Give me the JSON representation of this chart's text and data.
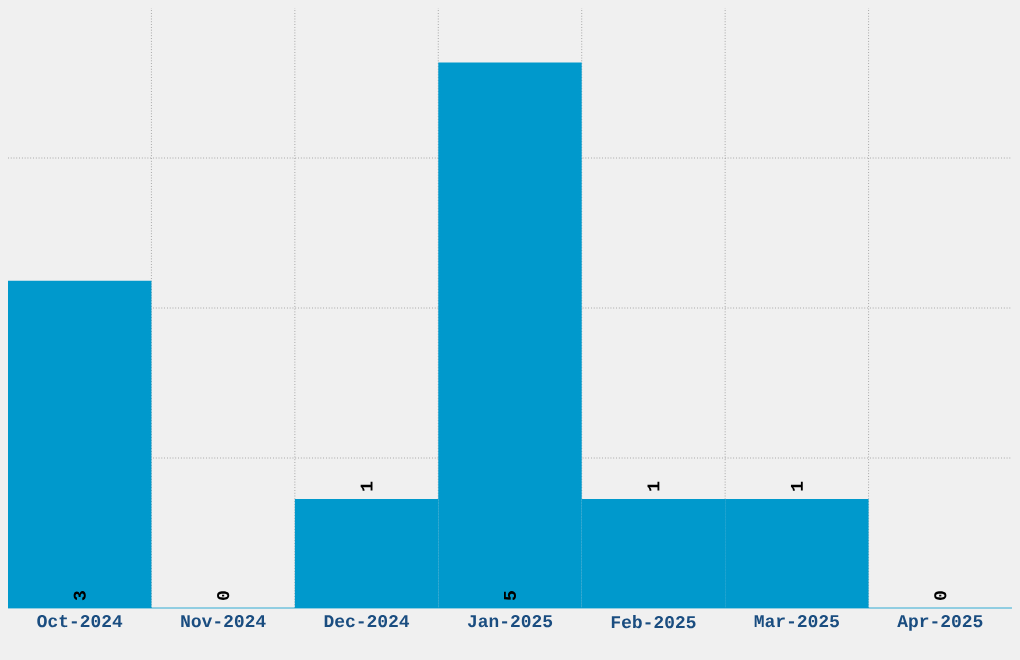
{
  "chart_data": {
    "type": "bar",
    "categories": [
      "Oct-2024",
      "Nov-2024",
      "Dec-2024",
      "Jan-2025",
      "Feb-2025",
      "Mar-2025",
      "Apr-2025"
    ],
    "values": [
      3,
      0,
      1,
      5,
      1,
      1,
      0
    ],
    "color": "#0099cc",
    "ylim": [
      0,
      5.5
    ],
    "tick_labels": "x",
    "grid": true,
    "data_labels": true
  }
}
